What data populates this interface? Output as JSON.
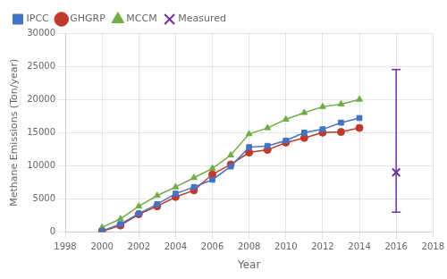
{
  "chart_data": {
    "type": "line",
    "x": [
      2000,
      2001,
      2002,
      2003,
      2004,
      2005,
      2006,
      2007,
      2008,
      2009,
      2010,
      2011,
      2012,
      2013,
      2014
    ],
    "series": [
      {
        "name": "IPCC",
        "color": "#4472c4",
        "marker": "square",
        "values": [
          200,
          1200,
          2800,
          4200,
          5800,
          6800,
          7900,
          9900,
          12800,
          13000,
          13800,
          15000,
          15500,
          16500,
          17200
        ]
      },
      {
        "name": "GHGRP",
        "color": "#c0392b",
        "marker": "circle",
        "values": [
          100,
          1000,
          2700,
          3900,
          5300,
          6300,
          8700,
          10200,
          12000,
          12400,
          13500,
          14200,
          15000,
          15100,
          15700
        ]
      },
      {
        "name": "MCCM",
        "color": "#70ad47",
        "marker": "triangle",
        "values": [
          700,
          2000,
          3900,
          5500,
          6800,
          8200,
          9600,
          11600,
          14800,
          15700,
          17000,
          18000,
          18900,
          19300,
          20000
        ]
      },
      {
        "name": "Measured",
        "color": "#7030a0",
        "marker": "x",
        "type": "scatter",
        "x": [
          2016
        ],
        "values": [
          9000
        ],
        "lower": [
          3000
        ],
        "upper": [
          24500
        ]
      }
    ],
    "xlabel": "Year",
    "ylabel": "Methane Emissions (Ton/year)",
    "xlim": [
      1998,
      2018
    ],
    "ylim": [
      0,
      30000
    ],
    "xticks": [
      1998,
      2000,
      2002,
      2004,
      2006,
      2008,
      2010,
      2012,
      2014,
      2016,
      2018
    ],
    "yticks": [
      0,
      5000,
      10000,
      15000,
      20000,
      25000,
      30000
    ],
    "grid": true,
    "legend": "upper left"
  }
}
